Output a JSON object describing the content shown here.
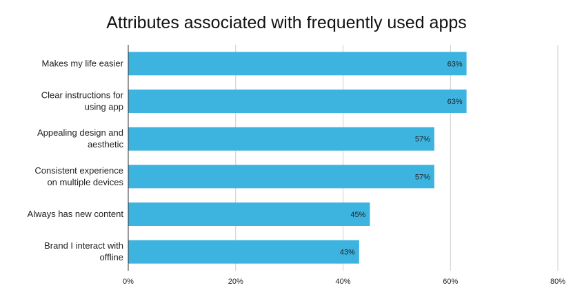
{
  "chart_data": {
    "type": "bar",
    "orientation": "horizontal",
    "title": "Attributes associated with frequently used apps",
    "categories": [
      [
        "Makes my life easier"
      ],
      [
        "Clear instructions for",
        "using app"
      ],
      [
        "Appealing design and",
        "aesthetic"
      ],
      [
        "Consistent experience",
        "on multiple devices"
      ],
      [
        "Always has new content"
      ],
      [
        "Brand I interact with",
        "offline"
      ]
    ],
    "values": [
      63,
      63,
      57,
      57,
      45,
      43
    ],
    "data_labels": [
      "63%",
      "63%",
      "57%",
      "57%",
      "45%",
      "43%"
    ],
    "xlim": [
      0,
      80
    ],
    "x_ticks": [
      0,
      20,
      40,
      60,
      80
    ],
    "x_tick_labels": [
      "0%",
      "20%",
      "40%",
      "60%",
      "80%"
    ],
    "grid": "vertical",
    "legend": "none",
    "bar_color": "#3db3e0"
  }
}
